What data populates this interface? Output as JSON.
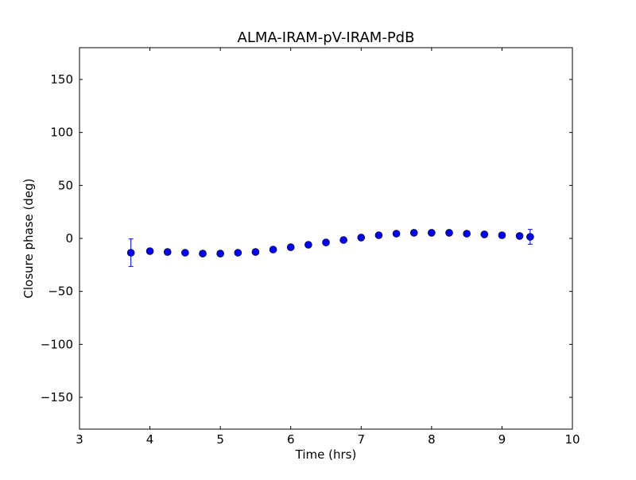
{
  "chart_data": {
    "type": "scatter",
    "title": "ALMA-IRAM-pV-IRAM-PdB",
    "xlabel": "Time (hrs)",
    "ylabel": "Closure phase (deg)",
    "xlim": [
      3,
      10
    ],
    "ylim": [
      -180,
      180
    ],
    "xticks": [
      "3",
      "4",
      "5",
      "6",
      "7",
      "8",
      "9",
      "10"
    ],
    "yticks": [
      "−150",
      "−100",
      "−50",
      "0",
      "50",
      "100",
      "150"
    ],
    "ytick_values": [
      -150,
      -100,
      -50,
      0,
      50,
      100,
      150
    ],
    "grid": false,
    "marker_color": "#0000ff",
    "x": [
      3.73,
      4.0,
      4.25,
      4.5,
      4.75,
      5.0,
      5.25,
      5.5,
      5.75,
      6.0,
      6.25,
      6.5,
      6.75,
      7.0,
      7.25,
      7.5,
      7.75,
      8.0,
      8.25,
      8.5,
      8.75,
      9.0,
      9.25,
      9.4
    ],
    "y": [
      -13.5,
      -12,
      -12.8,
      -13.5,
      -14.3,
      -14.3,
      -13.5,
      -12.8,
      -10.5,
      -8.3,
      -6,
      -3.8,
      -1.5,
      0.8,
      3,
      4.5,
      5.3,
      5.3,
      5.3,
      4.5,
      3.8,
      3,
      2.3,
      1.5
    ],
    "yerr": [
      13,
      1,
      1,
      1,
      1,
      1,
      1,
      1,
      1,
      1,
      1,
      1,
      1,
      1,
      1,
      1,
      1,
      1,
      1,
      1,
      1,
      1,
      1,
      7
    ]
  }
}
